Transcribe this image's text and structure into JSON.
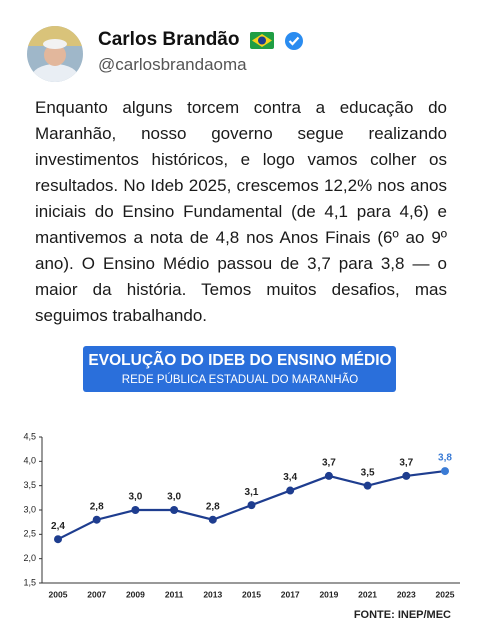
{
  "post": {
    "name": "Carlos Brandão",
    "handle": "@carlosbrandaoma",
    "text": "Enquanto alguns torcem contra a educação do Maranhão, nosso governo segue realizando investimentos históricos, e logo vamos colher os resultados. No Ideb 2025, crescemos 12,2% nos anos iniciais do Ensino Fundamental (de 4,1 para 4,6) e mantivemos a nota de 4,8 nos Anos Finais (6º ao 9º ano). O Ensino Médio passou de 3,7 para 3,8 — o maior da história. Temos muitos desafios, mas seguimos trabalhando."
  },
  "chart_data": {
    "type": "line",
    "title": "EVOLUÇÃO DO IDEB DO ENSINO MÉDIO",
    "subtitle": "REDE PÚBLICA ESTADUAL DO MARANHÃO",
    "categories": [
      "2005",
      "2007",
      "2009",
      "2011",
      "2013",
      "2015",
      "2017",
      "2019",
      "2021",
      "2023",
      "2025"
    ],
    "values": [
      2.4,
      2.8,
      3.0,
      3.0,
      2.8,
      3.1,
      3.4,
      3.7,
      3.5,
      3.7,
      3.8
    ],
    "value_labels": [
      "2,4",
      "2,8",
      "3,0",
      "3,0",
      "2,8",
      "3,1",
      "3,4",
      "3,7",
      "3,5",
      "3,7",
      "3,8"
    ],
    "color": "#1e3d8f",
    "last_label_color": "#3a7bd5",
    "banner_color": "#2a6fdb",
    "ylim": [
      1.5,
      4.5
    ],
    "yticks": [
      {
        "value": 1.5,
        "label": "1,5"
      },
      {
        "value": 2.0,
        "label": "2,0"
      },
      {
        "value": 2.5,
        "label": "2,5"
      },
      {
        "value": 3.0,
        "label": "3,0"
      },
      {
        "value": 3.5,
        "label": "3,5"
      },
      {
        "value": 4.0,
        "label": "4,0"
      },
      {
        "value": 4.5,
        "label": "4,5"
      }
    ],
    "source": "FONTE: INEP/MEC"
  }
}
